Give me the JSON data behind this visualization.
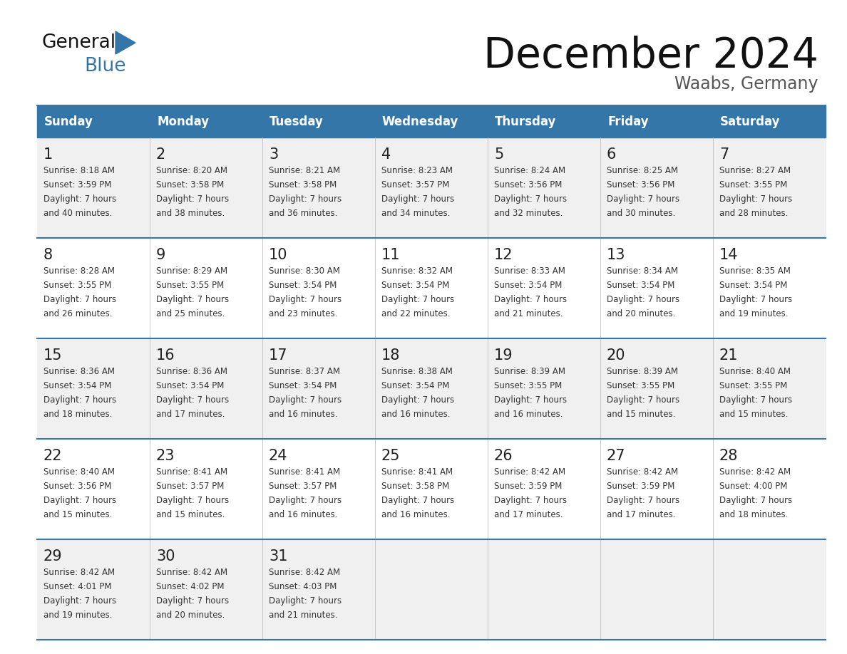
{
  "title": "December 2024",
  "subtitle": "Waabs, Germany",
  "header_color": "#3576a8",
  "header_text_color": "#ffffff",
  "weekdays": [
    "Sunday",
    "Monday",
    "Tuesday",
    "Wednesday",
    "Thursday",
    "Friday",
    "Saturday"
  ],
  "background_color": "#ffffff",
  "cell_bg_odd": "#f0f0f0",
  "cell_bg_even": "#ffffff",
  "row_separator_color": "#3878a8",
  "grid_line_color": "#c0c0c0",
  "title_color": "#111111",
  "subtitle_color": "#555555",
  "day_num_color": "#222222",
  "cell_text_color": "#333333",
  "days": [
    {
      "day": 1,
      "row": 0,
      "col": 0,
      "sunrise": "8:18 AM",
      "sunset": "3:59 PM",
      "daylight": "7 hours and 40 minutes."
    },
    {
      "day": 2,
      "row": 0,
      "col": 1,
      "sunrise": "8:20 AM",
      "sunset": "3:58 PM",
      "daylight": "7 hours and 38 minutes."
    },
    {
      "day": 3,
      "row": 0,
      "col": 2,
      "sunrise": "8:21 AM",
      "sunset": "3:58 PM",
      "daylight": "7 hours and 36 minutes."
    },
    {
      "day": 4,
      "row": 0,
      "col": 3,
      "sunrise": "8:23 AM",
      "sunset": "3:57 PM",
      "daylight": "7 hours and 34 minutes."
    },
    {
      "day": 5,
      "row": 0,
      "col": 4,
      "sunrise": "8:24 AM",
      "sunset": "3:56 PM",
      "daylight": "7 hours and 32 minutes."
    },
    {
      "day": 6,
      "row": 0,
      "col": 5,
      "sunrise": "8:25 AM",
      "sunset": "3:56 PM",
      "daylight": "7 hours and 30 minutes."
    },
    {
      "day": 7,
      "row": 0,
      "col": 6,
      "sunrise": "8:27 AM",
      "sunset": "3:55 PM",
      "daylight": "7 hours and 28 minutes."
    },
    {
      "day": 8,
      "row": 1,
      "col": 0,
      "sunrise": "8:28 AM",
      "sunset": "3:55 PM",
      "daylight": "7 hours and 26 minutes."
    },
    {
      "day": 9,
      "row": 1,
      "col": 1,
      "sunrise": "8:29 AM",
      "sunset": "3:55 PM",
      "daylight": "7 hours and 25 minutes."
    },
    {
      "day": 10,
      "row": 1,
      "col": 2,
      "sunrise": "8:30 AM",
      "sunset": "3:54 PM",
      "daylight": "7 hours and 23 minutes."
    },
    {
      "day": 11,
      "row": 1,
      "col": 3,
      "sunrise": "8:32 AM",
      "sunset": "3:54 PM",
      "daylight": "7 hours and 22 minutes."
    },
    {
      "day": 12,
      "row": 1,
      "col": 4,
      "sunrise": "8:33 AM",
      "sunset": "3:54 PM",
      "daylight": "7 hours and 21 minutes."
    },
    {
      "day": 13,
      "row": 1,
      "col": 5,
      "sunrise": "8:34 AM",
      "sunset": "3:54 PM",
      "daylight": "7 hours and 20 minutes."
    },
    {
      "day": 14,
      "row": 1,
      "col": 6,
      "sunrise": "8:35 AM",
      "sunset": "3:54 PM",
      "daylight": "7 hours and 19 minutes."
    },
    {
      "day": 15,
      "row": 2,
      "col": 0,
      "sunrise": "8:36 AM",
      "sunset": "3:54 PM",
      "daylight": "7 hours and 18 minutes."
    },
    {
      "day": 16,
      "row": 2,
      "col": 1,
      "sunrise": "8:36 AM",
      "sunset": "3:54 PM",
      "daylight": "7 hours and 17 minutes."
    },
    {
      "day": 17,
      "row": 2,
      "col": 2,
      "sunrise": "8:37 AM",
      "sunset": "3:54 PM",
      "daylight": "7 hours and 16 minutes."
    },
    {
      "day": 18,
      "row": 2,
      "col": 3,
      "sunrise": "8:38 AM",
      "sunset": "3:54 PM",
      "daylight": "7 hours and 16 minutes."
    },
    {
      "day": 19,
      "row": 2,
      "col": 4,
      "sunrise": "8:39 AM",
      "sunset": "3:55 PM",
      "daylight": "7 hours and 16 minutes."
    },
    {
      "day": 20,
      "row": 2,
      "col": 5,
      "sunrise": "8:39 AM",
      "sunset": "3:55 PM",
      "daylight": "7 hours and 15 minutes."
    },
    {
      "day": 21,
      "row": 2,
      "col": 6,
      "sunrise": "8:40 AM",
      "sunset": "3:55 PM",
      "daylight": "7 hours and 15 minutes."
    },
    {
      "day": 22,
      "row": 3,
      "col": 0,
      "sunrise": "8:40 AM",
      "sunset": "3:56 PM",
      "daylight": "7 hours and 15 minutes."
    },
    {
      "day": 23,
      "row": 3,
      "col": 1,
      "sunrise": "8:41 AM",
      "sunset": "3:57 PM",
      "daylight": "7 hours and 15 minutes."
    },
    {
      "day": 24,
      "row": 3,
      "col": 2,
      "sunrise": "8:41 AM",
      "sunset": "3:57 PM",
      "daylight": "7 hours and 16 minutes."
    },
    {
      "day": 25,
      "row": 3,
      "col": 3,
      "sunrise": "8:41 AM",
      "sunset": "3:58 PM",
      "daylight": "7 hours and 16 minutes."
    },
    {
      "day": 26,
      "row": 3,
      "col": 4,
      "sunrise": "8:42 AM",
      "sunset": "3:59 PM",
      "daylight": "7 hours and 17 minutes."
    },
    {
      "day": 27,
      "row": 3,
      "col": 5,
      "sunrise": "8:42 AM",
      "sunset": "3:59 PM",
      "daylight": "7 hours and 17 minutes."
    },
    {
      "day": 28,
      "row": 3,
      "col": 6,
      "sunrise": "8:42 AM",
      "sunset": "4:00 PM",
      "daylight": "7 hours and 18 minutes."
    },
    {
      "day": 29,
      "row": 4,
      "col": 0,
      "sunrise": "8:42 AM",
      "sunset": "4:01 PM",
      "daylight": "7 hours and 19 minutes."
    },
    {
      "day": 30,
      "row": 4,
      "col": 1,
      "sunrise": "8:42 AM",
      "sunset": "4:02 PM",
      "daylight": "7 hours and 20 minutes."
    },
    {
      "day": 31,
      "row": 4,
      "col": 2,
      "sunrise": "8:42 AM",
      "sunset": "4:03 PM",
      "daylight": "7 hours and 21 minutes."
    }
  ]
}
